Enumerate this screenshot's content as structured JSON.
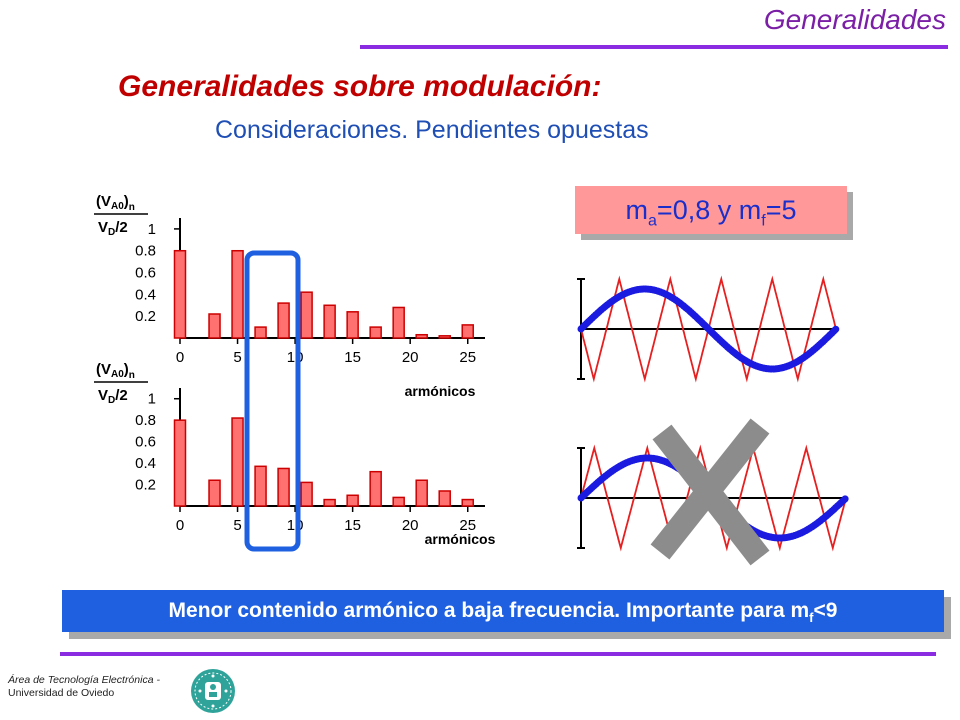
{
  "header": {
    "title": "Generalidades"
  },
  "main_title": "Generalidades sobre modulación:",
  "subtitle": "Consideraciones. Pendientes opuestas",
  "param_box": {
    "m_a_symbol": "m",
    "m_a_sub": "a",
    "m_a_value": "=0,8 y ",
    "m_f_symbol": "m",
    "m_f_sub": "f",
    "m_f_value": "=5"
  },
  "bottom_box": {
    "text": "Menor contenido armónico a baja frecuencia. Importante para m",
    "sub": "f",
    "tail": "<9"
  },
  "footer": {
    "line1": "Área de Tecnología Electrónica -",
    "line2": "Universidad de Oviedo"
  },
  "colors": {
    "purple": "#8a2be2",
    "red_title": "#c00000",
    "blue_text": "#1f4fb5",
    "bar_fill": "#ff7070",
    "bar_edge": "#cc0000",
    "highlight": "#1e60e0",
    "sine": "#1a1ae0",
    "triangle": "#e62020",
    "cross": "#8c8c8c"
  },
  "chart_data": [
    {
      "type": "bar",
      "ylabel_num": "(V",
      "ylabel_num_sub": "A0",
      "ylabel_num_tail": ")",
      "ylabel_num_n": "n",
      "ylabel_den": "V",
      "ylabel_den_sub": "D",
      "ylabel_den_tail": "/2",
      "xlabel": "",
      "ylim": [
        0,
        1.1
      ],
      "yticks": [
        "0.2",
        "0.4",
        "0.6",
        "0.8",
        "1"
      ],
      "yticks_values": [
        0.2,
        0.4,
        0.6,
        0.8,
        1.0
      ],
      "xticks": [
        "0",
        "5",
        "10",
        "15",
        "20",
        "25"
      ],
      "xticks_values": [
        0,
        5,
        10,
        15,
        20,
        25
      ],
      "x": [
        0,
        3,
        5,
        7,
        9,
        11,
        13,
        15,
        17,
        19,
        21,
        23,
        25
      ],
      "values": [
        0.8,
        0.22,
        0.8,
        0.1,
        0.32,
        0.42,
        0.3,
        0.24,
        0.1,
        0.28,
        0.03,
        0.02,
        0.12
      ]
    },
    {
      "type": "bar",
      "ylabel_num": "(V",
      "ylabel_num_sub": "A0",
      "ylabel_num_tail": ")",
      "ylabel_num_n": "n",
      "ylabel_den": "V",
      "ylabel_den_sub": "D",
      "ylabel_den_tail": "/2",
      "xlabel": "armónicos",
      "ylim": [
        0,
        1.1
      ],
      "yticks": [
        "0.2",
        "0.4",
        "0.6",
        "0.8",
        "1"
      ],
      "yticks_values": [
        0.2,
        0.4,
        0.6,
        0.8,
        1.0
      ],
      "xticks": [
        "0",
        "5",
        "10",
        "15",
        "20",
        "25"
      ],
      "xticks_values": [
        0,
        5,
        10,
        15,
        20,
        25
      ],
      "x": [
        0,
        3,
        5,
        7,
        9,
        11,
        13,
        15,
        17,
        19,
        21,
        23,
        25
      ],
      "values": [
        0.8,
        0.24,
        0.82,
        0.37,
        0.35,
        0.22,
        0.06,
        0.1,
        0.32,
        0.08,
        0.24,
        0.14,
        0.06
      ]
    }
  ],
  "between_label": "armónicos",
  "waveforms": {
    "m_a": 0.8,
    "m_f": 5
  }
}
